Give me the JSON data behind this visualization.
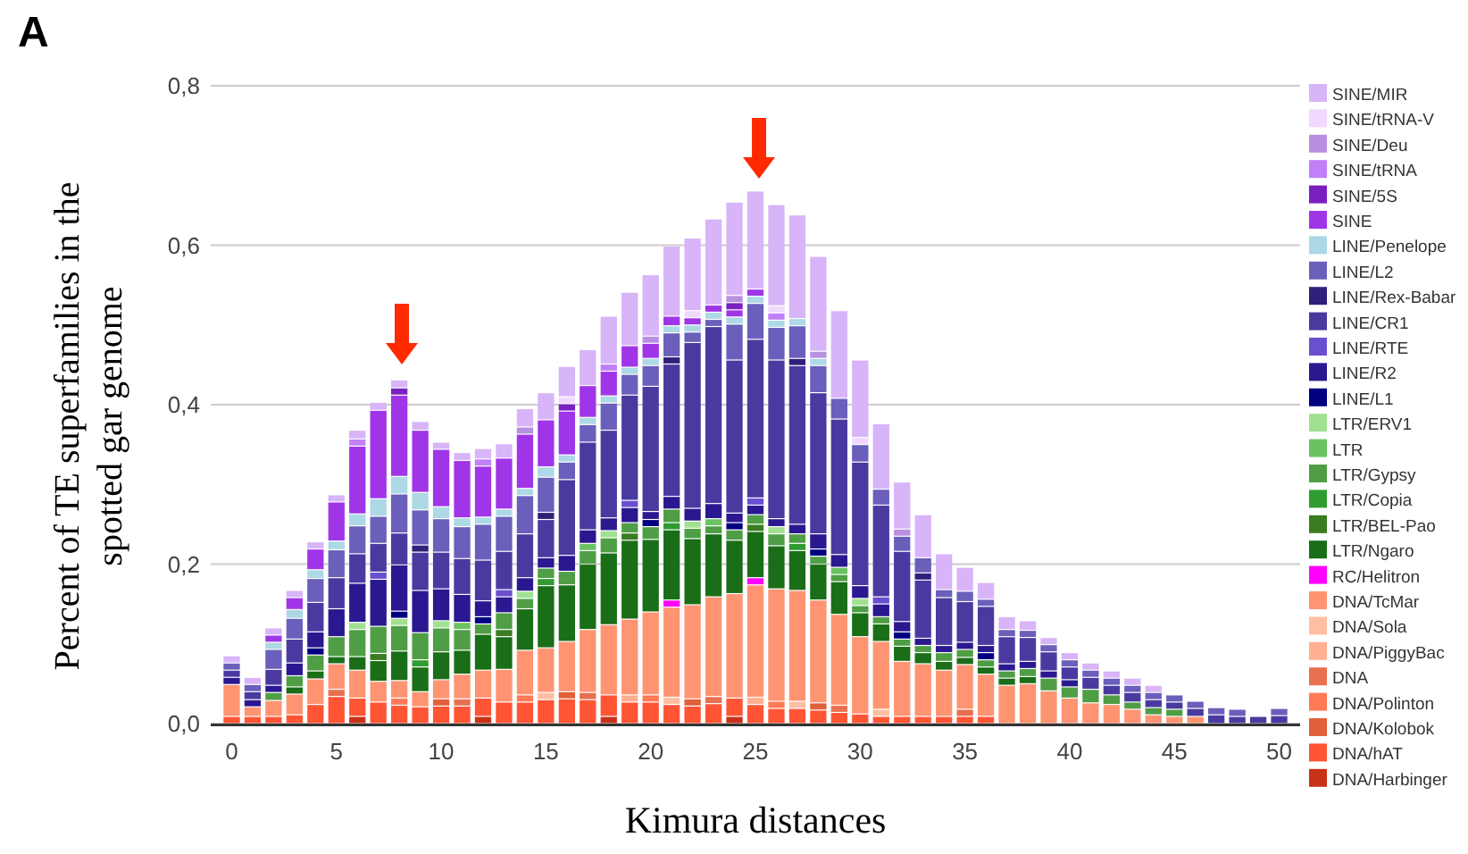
{
  "chart_data": {
    "type": "bar",
    "stacked": true,
    "title": "A",
    "xlabel": "Kimura distances",
    "ylabel": "Percent of TE superfamilies in the spotted gar genome",
    "x": [
      0,
      1,
      2,
      3,
      4,
      5,
      6,
      7,
      8,
      9,
      10,
      11,
      12,
      13,
      14,
      15,
      16,
      17,
      18,
      19,
      20,
      21,
      22,
      23,
      24,
      25,
      26,
      27,
      28,
      29,
      30,
      31,
      32,
      33,
      34,
      35,
      36,
      37,
      38,
      39,
      40,
      41,
      42,
      43,
      44,
      45,
      46,
      47,
      48,
      49,
      50
    ],
    "xlim": [
      -1,
      51
    ],
    "xticks": [
      0,
      5,
      10,
      15,
      20,
      25,
      30,
      35,
      40,
      45,
      50
    ],
    "ylim": [
      0,
      0.8
    ],
    "yticks": [
      {
        "value": 0,
        "label": "0,0"
      },
      {
        "value": 0.2,
        "label": "0,2"
      },
      {
        "value": 0.4,
        "label": "0,4"
      },
      {
        "value": 0.6,
        "label": "0,6"
      },
      {
        "value": 0.8,
        "label": "0,8"
      }
    ],
    "grid": "y",
    "legend": "right",
    "series": [
      {
        "name": "DNA/Harbinger",
        "color": "#c83218",
        "values": [
          0,
          0,
          0,
          0,
          0,
          0,
          0.009,
          0,
          0,
          0,
          0,
          0,
          0.009,
          0,
          0,
          0,
          0,
          0,
          0.009,
          0,
          0,
          0,
          0,
          0,
          0.009,
          0,
          0,
          0,
          0,
          0,
          0,
          0,
          0,
          0,
          0,
          0,
          0,
          0,
          0,
          0,
          0,
          0,
          0,
          0,
          0,
          0,
          0,
          0,
          0,
          0,
          0
        ]
      },
      {
        "name": "DNA/hAT",
        "color": "#ff5535",
        "values": [
          0.009,
          0.009,
          0.009,
          0.011,
          0.024,
          0.034,
          0.023,
          0.027,
          0.023,
          0.021,
          0.022,
          0.022,
          0.023,
          0.027,
          0.027,
          0.03,
          0.031,
          0.03,
          0.027,
          0.027,
          0.027,
          0.024,
          0.022,
          0.025,
          0.023,
          0.024,
          0.019,
          0.019,
          0.017,
          0.014,
          0.012,
          0.009,
          0.009,
          0.009,
          0.009,
          0.009,
          0.009,
          0,
          0,
          0,
          0,
          0,
          0,
          0,
          0,
          0,
          0,
          0,
          0,
          0,
          0
        ]
      },
      {
        "name": "DNA/Kolobok",
        "color": "#e0603a",
        "values": [
          0,
          0,
          0,
          0,
          0,
          0,
          0,
          0,
          0,
          0,
          0.009,
          0,
          0,
          0,
          0,
          0,
          0.009,
          0,
          0,
          0,
          0,
          0,
          0.009,
          0,
          0,
          0,
          0,
          0,
          0.009,
          0,
          0,
          0,
          0,
          0,
          0,
          0,
          0,
          0,
          0,
          0,
          0,
          0,
          0,
          0,
          0,
          0,
          0,
          0,
          0,
          0,
          0
        ]
      },
      {
        "name": "DNA/Polinton",
        "color": "#ff7a55",
        "values": [
          0,
          0,
          0,
          0,
          0,
          0,
          0,
          0,
          0.009,
          0,
          0,
          0,
          0,
          0,
          0.009,
          0,
          0,
          0,
          0,
          0,
          0.009,
          0,
          0,
          0,
          0,
          0,
          0.009,
          0,
          0,
          0,
          0,
          0,
          0,
          0,
          0,
          0,
          0,
          0,
          0,
          0,
          0,
          0,
          0,
          0,
          0,
          0,
          0,
          0,
          0,
          0,
          0
        ]
      },
      {
        "name": "DNA",
        "color": "#e87050",
        "values": [
          0,
          0,
          0,
          0,
          0,
          0.009,
          0,
          0,
          0,
          0,
          0,
          0.009,
          0,
          0,
          0,
          0,
          0,
          0.009,
          0,
          0,
          0,
          0,
          0,
          0.009,
          0,
          0,
          0,
          0,
          0,
          0.009,
          0,
          0,
          0,
          0,
          0,
          0.009,
          0,
          0,
          0,
          0,
          0,
          0,
          0,
          0,
          0,
          0,
          0,
          0,
          0,
          0,
          0
        ]
      },
      {
        "name": "DNA/PiggyBac",
        "color": "#ffb090",
        "values": [
          0,
          0,
          0,
          0,
          0,
          0,
          0,
          0,
          0,
          0,
          0,
          0,
          0,
          0,
          0,
          0,
          0,
          0,
          0,
          0.009,
          0,
          0,
          0,
          0,
          0,
          0.009,
          0,
          0,
          0,
          0,
          0,
          0,
          0,
          0,
          0,
          0,
          0,
          0,
          0,
          0,
          0,
          0,
          0,
          0,
          0,
          0,
          0,
          0,
          0,
          0,
          0
        ]
      },
      {
        "name": "DNA/Sola",
        "color": "#ffbea2",
        "values": [
          0,
          0,
          0,
          0,
          0,
          0,
          0,
          0,
          0,
          0,
          0,
          0,
          0,
          0,
          0,
          0.009,
          0,
          0,
          0,
          0,
          0,
          0.009,
          0,
          0,
          0,
          0,
          0,
          0.009,
          0,
          0,
          0,
          0.009,
          0,
          0,
          0,
          0,
          0,
          0,
          0,
          0,
          0,
          0,
          0,
          0,
          0,
          0,
          0,
          0,
          0,
          0,
          0
        ]
      },
      {
        "name": "DNA/TcMar",
        "color": "#ff9472",
        "values": [
          0.04,
          0.012,
          0.02,
          0.026,
          0.032,
          0.032,
          0.035,
          0.026,
          0.022,
          0.019,
          0.024,
          0.031,
          0.035,
          0.041,
          0.056,
          0.056,
          0.063,
          0.079,
          0.088,
          0.095,
          0.104,
          0.113,
          0.118,
          0.125,
          0.131,
          0.141,
          0.141,
          0.139,
          0.129,
          0.114,
          0.097,
          0.085,
          0.069,
          0.066,
          0.058,
          0.056,
          0.053,
          0.048,
          0.05,
          0.041,
          0.032,
          0.026,
          0.024,
          0.018,
          0.011,
          0.009,
          0.009,
          0,
          0,
          0,
          0
        ]
      },
      {
        "name": "RC/Helitron",
        "color": "#ff00ff",
        "values": [
          0,
          0,
          0,
          0,
          0,
          0,
          0,
          0,
          0,
          0,
          0,
          0,
          0,
          0,
          0,
          0,
          0,
          0,
          0,
          0,
          0,
          0.009,
          0,
          0,
          0,
          0.009,
          0,
          0,
          0,
          0,
          0,
          0,
          0,
          0,
          0,
          0,
          0,
          0,
          0,
          0,
          0,
          0,
          0,
          0,
          0,
          0,
          0,
          0,
          0,
          0,
          0
        ]
      },
      {
        "name": "LTR/Ngaro",
        "color": "#1a6e18",
        "values": [
          0,
          0,
          0,
          0.009,
          0.01,
          0.009,
          0.017,
          0.026,
          0.037,
          0.031,
          0.035,
          0.03,
          0.045,
          0.041,
          0.052,
          0.078,
          0.071,
          0.082,
          0.09,
          0.099,
          0.091,
          0.088,
          0.083,
          0.079,
          0.067,
          0.058,
          0.054,
          0.05,
          0.045,
          0.041,
          0.03,
          0.022,
          0.019,
          0.014,
          0.011,
          0.009,
          0.009,
          0.009,
          0.009,
          0,
          0,
          0,
          0,
          0,
          0,
          0,
          0,
          0,
          0,
          0,
          0
        ]
      },
      {
        "name": "LTR/BEL-Pao",
        "color": "#3a7d20",
        "values": [
          0,
          0,
          0,
          0,
          0,
          0,
          0,
          0.009,
          0,
          0,
          0,
          0,
          0,
          0.009,
          0,
          0,
          0,
          0,
          0,
          0.009,
          0,
          0,
          0,
          0,
          0,
          0.009,
          0,
          0,
          0,
          0,
          0,
          0,
          0,
          0,
          0,
          0,
          0,
          0,
          0,
          0,
          0,
          0,
          0,
          0,
          0,
          0,
          0,
          0,
          0,
          0,
          0
        ]
      },
      {
        "name": "LTR/Copia",
        "color": "#2f9c2f",
        "values": [
          0,
          0,
          0,
          0,
          0,
          0,
          0,
          0,
          0,
          0.009,
          0,
          0,
          0,
          0,
          0,
          0.009,
          0,
          0,
          0,
          0,
          0,
          0.009,
          0,
          0,
          0,
          0,
          0,
          0.009,
          0,
          0,
          0,
          0,
          0,
          0,
          0,
          0,
          0,
          0,
          0,
          0,
          0,
          0,
          0,
          0,
          0,
          0,
          0,
          0,
          0,
          0,
          0
        ]
      },
      {
        "name": "LTR/Gypsy",
        "color": "#4f9e46",
        "values": [
          0,
          0,
          0.01,
          0.014,
          0.02,
          0.025,
          0.034,
          0.034,
          0.032,
          0.034,
          0.03,
          0.026,
          0.013,
          0.021,
          0.013,
          0.013,
          0.017,
          0.017,
          0.019,
          0.013,
          0.016,
          0.017,
          0.013,
          0.01,
          0.013,
          0.012,
          0.015,
          0.012,
          0.01,
          0.009,
          0.009,
          0.009,
          0.009,
          0.009,
          0.011,
          0.01,
          0.009,
          0.009,
          0.01,
          0.016,
          0.014,
          0.017,
          0.012,
          0.009,
          0.009,
          0.009,
          0,
          0,
          0,
          0,
          0
        ]
      },
      {
        "name": "LTR",
        "color": "#6ac262",
        "values": [
          0,
          0,
          0,
          0,
          0,
          0,
          0,
          0,
          0,
          0,
          0,
          0.009,
          0,
          0,
          0,
          0,
          0,
          0.009,
          0,
          0,
          0,
          0,
          0,
          0.009,
          0,
          0,
          0,
          0,
          0,
          0.009,
          0,
          0,
          0,
          0,
          0,
          0,
          0,
          0,
          0,
          0,
          0,
          0,
          0,
          0,
          0,
          0,
          0,
          0,
          0,
          0,
          0
        ]
      },
      {
        "name": "LTR/ERV1",
        "color": "#a0e090",
        "values": [
          0,
          0,
          0,
          0,
          0,
          0,
          0.009,
          0,
          0.009,
          0,
          0.009,
          0,
          0,
          0,
          0.009,
          0,
          0,
          0,
          0.009,
          0,
          0,
          0,
          0.009,
          0,
          0,
          0,
          0.009,
          0,
          0,
          0,
          0.009,
          0,
          0,
          0,
          0,
          0,
          0,
          0,
          0,
          0,
          0,
          0,
          0,
          0,
          0,
          0,
          0,
          0,
          0,
          0,
          0
        ]
      },
      {
        "name": "LINE/L1",
        "color": "#000080",
        "values": [
          0,
          0,
          0,
          0,
          0.009,
          0,
          0,
          0,
          0.009,
          0,
          0,
          0,
          0.009,
          0,
          0,
          0,
          0,
          0,
          0,
          0,
          0.009,
          0,
          0,
          0,
          0.009,
          0,
          0,
          0,
          0.009,
          0,
          0,
          0,
          0.009,
          0,
          0,
          0,
          0.009,
          0,
          0,
          0,
          0,
          0,
          0,
          0,
          0,
          0,
          0,
          0,
          0,
          0,
          0
        ]
      },
      {
        "name": "LINE/R2",
        "color": "#2a1890",
        "values": [
          0.009,
          0.009,
          0.009,
          0.016,
          0.02,
          0.035,
          0.049,
          0.059,
          0.058,
          0.053,
          0.04,
          0.035,
          0.02,
          0.02,
          0.017,
          0.013,
          0.02,
          0.017,
          0.016,
          0.019,
          0.01,
          0.016,
          0.016,
          0.019,
          0.012,
          0.012,
          0.01,
          0.012,
          0.019,
          0.016,
          0.016,
          0.016,
          0.013,
          0.009,
          0.009,
          0.009,
          0.009,
          0.009,
          0.009,
          0.009,
          0.009,
          0,
          0,
          0,
          0,
          0,
          0,
          0,
          0,
          0,
          0
        ]
      },
      {
        "name": "LINE/RTE",
        "color": "#6a4fd0",
        "values": [
          0,
          0,
          0,
          0,
          0,
          0,
          0,
          0.009,
          0,
          0,
          0,
          0,
          0,
          0.009,
          0,
          0,
          0,
          0,
          0,
          0.009,
          0,
          0,
          0,
          0,
          0,
          0.009,
          0,
          0,
          0,
          0,
          0,
          0.009,
          0,
          0,
          0,
          0,
          0,
          0,
          0,
          0,
          0,
          0,
          0,
          0,
          0,
          0,
          0,
          0,
          0,
          0,
          0
        ]
      },
      {
        "name": "LINE/CR1",
        "color": "#4a3aa0",
        "values": [
          0.009,
          0.01,
          0.02,
          0.03,
          0.037,
          0.039,
          0.037,
          0.036,
          0.04,
          0.048,
          0.046,
          0.045,
          0.051,
          0.048,
          0.055,
          0.048,
          0.095,
          0.11,
          0.11,
          0.132,
          0.157,
          0.166,
          0.208,
          0.222,
          0.192,
          0.199,
          0.199,
          0.199,
          0.177,
          0.17,
          0.155,
          0.115,
          0.088,
          0.073,
          0.06,
          0.051,
          0.049,
          0.034,
          0.03,
          0.024,
          0.016,
          0.015,
          0.012,
          0.012,
          0.01,
          0.009,
          0.01,
          0.011,
          0.009,
          0.009,
          0.01
        ]
      },
      {
        "name": "LINE/Rex-Babar",
        "color": "#30207a",
        "values": [
          0,
          0,
          0,
          0,
          0,
          0,
          0,
          0,
          0,
          0.009,
          0,
          0,
          0,
          0,
          0,
          0.009,
          0,
          0,
          0,
          0,
          0,
          0.009,
          0,
          0,
          0,
          0,
          0,
          0.009,
          0,
          0,
          0,
          0,
          0,
          0.009,
          0,
          0,
          0,
          0,
          0,
          0,
          0,
          0,
          0,
          0,
          0,
          0,
          0,
          0,
          0,
          0,
          0
        ]
      },
      {
        "name": "LINE/L2",
        "color": "#6a5fba",
        "values": [
          0.009,
          0.009,
          0.025,
          0.026,
          0.03,
          0.035,
          0.035,
          0.034,
          0.049,
          0.044,
          0.042,
          0.04,
          0.045,
          0.044,
          0.048,
          0.044,
          0.022,
          0.022,
          0.034,
          0.026,
          0.026,
          0.03,
          0.013,
          0.009,
          0.045,
          0.045,
          0.041,
          0.041,
          0.034,
          0.026,
          0.022,
          0.02,
          0.019,
          0.019,
          0.01,
          0.013,
          0.009,
          0.009,
          0.009,
          0.009,
          0.009,
          0.009,
          0.009,
          0.009,
          0.009,
          0.009,
          0.009,
          0.009,
          0.009,
          0,
          0.009
        ]
      },
      {
        "name": "LINE/Penelope",
        "color": "#add8e6",
        "values": [
          0,
          0,
          0.009,
          0.011,
          0.011,
          0.011,
          0.015,
          0.022,
          0.022,
          0.022,
          0.015,
          0.011,
          0.009,
          0.009,
          0.009,
          0.013,
          0.009,
          0.009,
          0.009,
          0.009,
          0.009,
          0.009,
          0.009,
          0.009,
          0.009,
          0.009,
          0.009,
          0.009,
          0.009,
          0,
          0,
          0,
          0,
          0,
          0,
          0,
          0,
          0,
          0,
          0,
          0,
          0,
          0,
          0,
          0,
          0,
          0,
          0,
          0,
          0,
          0
        ]
      },
      {
        "name": "SINE",
        "color": "#a035e8",
        "values": [
          0,
          0,
          0.009,
          0.015,
          0.026,
          0.049,
          0.085,
          0.111,
          0.102,
          0.078,
          0.072,
          0.072,
          0.064,
          0.064,
          0.068,
          0.059,
          0.055,
          0.04,
          0.031,
          0.027,
          0.019,
          0.012,
          0.009,
          0.009,
          0.009,
          0.009,
          0,
          0,
          0,
          0,
          0,
          0,
          0,
          0,
          0,
          0,
          0,
          0,
          0,
          0,
          0,
          0,
          0,
          0,
          0,
          0,
          0,
          0,
          0,
          0,
          0
        ]
      },
      {
        "name": "SINE/5S",
        "color": "#7a20c0",
        "values": [
          0,
          0,
          0,
          0,
          0,
          0,
          0,
          0,
          0.009,
          0,
          0,
          0,
          0,
          0,
          0,
          0,
          0.009,
          0,
          0,
          0,
          0,
          0,
          0,
          0,
          0.009,
          0,
          0,
          0,
          0,
          0,
          0,
          0,
          0,
          0,
          0,
          0,
          0,
          0,
          0,
          0,
          0,
          0,
          0,
          0,
          0,
          0,
          0,
          0,
          0,
          0,
          0
        ]
      },
      {
        "name": "SINE/tRNA",
        "color": "#c080f8",
        "values": [
          0,
          0,
          0,
          0,
          0,
          0,
          0.009,
          0,
          0,
          0,
          0,
          0,
          0.009,
          0,
          0,
          0,
          0,
          0,
          0.009,
          0,
          0,
          0,
          0,
          0,
          0,
          0,
          0.009,
          0,
          0,
          0,
          0,
          0,
          0,
          0,
          0,
          0,
          0,
          0,
          0,
          0,
          0,
          0,
          0,
          0,
          0,
          0,
          0,
          0,
          0,
          0,
          0
        ]
      },
      {
        "name": "SINE/Deu",
        "color": "#b890e0",
        "values": [
          0,
          0,
          0,
          0,
          0,
          0,
          0,
          0,
          0,
          0,
          0,
          0,
          0,
          0,
          0.009,
          0,
          0,
          0,
          0,
          0,
          0.009,
          0,
          0,
          0,
          0.009,
          0,
          0,
          0,
          0.009,
          0,
          0,
          0,
          0.009,
          0,
          0,
          0,
          0,
          0,
          0,
          0,
          0,
          0,
          0,
          0,
          0,
          0,
          0,
          0,
          0,
          0,
          0
        ]
      },
      {
        "name": "SINE/tRNA-V",
        "color": "#f0d8ff",
        "values": [
          0,
          0,
          0,
          0,
          0,
          0,
          0,
          0,
          0,
          0,
          0,
          0,
          0,
          0,
          0,
          0,
          0.009,
          0,
          0,
          0,
          0,
          0,
          0.009,
          0,
          0,
          0,
          0.009,
          0,
          0,
          0,
          0.009,
          0,
          0,
          0,
          0,
          0,
          0,
          0,
          0,
          0,
          0,
          0,
          0,
          0,
          0,
          0,
          0,
          0,
          0,
          0,
          0
        ]
      },
      {
        "name": "SINE/MIR",
        "color": "#d8b4f8",
        "values": [
          0.009,
          0.009,
          0.009,
          0.009,
          0.009,
          0.009,
          0.011,
          0.01,
          0.01,
          0.011,
          0.009,
          0.01,
          0.013,
          0.018,
          0.023,
          0.034,
          0.038,
          0.045,
          0.06,
          0.067,
          0.077,
          0.088,
          0.091,
          0.108,
          0.117,
          0.123,
          0.127,
          0.13,
          0.119,
          0.11,
          0.097,
          0.082,
          0.059,
          0.054,
          0.045,
          0.03,
          0.021,
          0.016,
          0.012,
          0.009,
          0.009,
          0.009,
          0.009,
          0.009,
          0.009,
          0,
          0,
          0,
          0,
          0,
          0
        ]
      }
    ]
  }
}
